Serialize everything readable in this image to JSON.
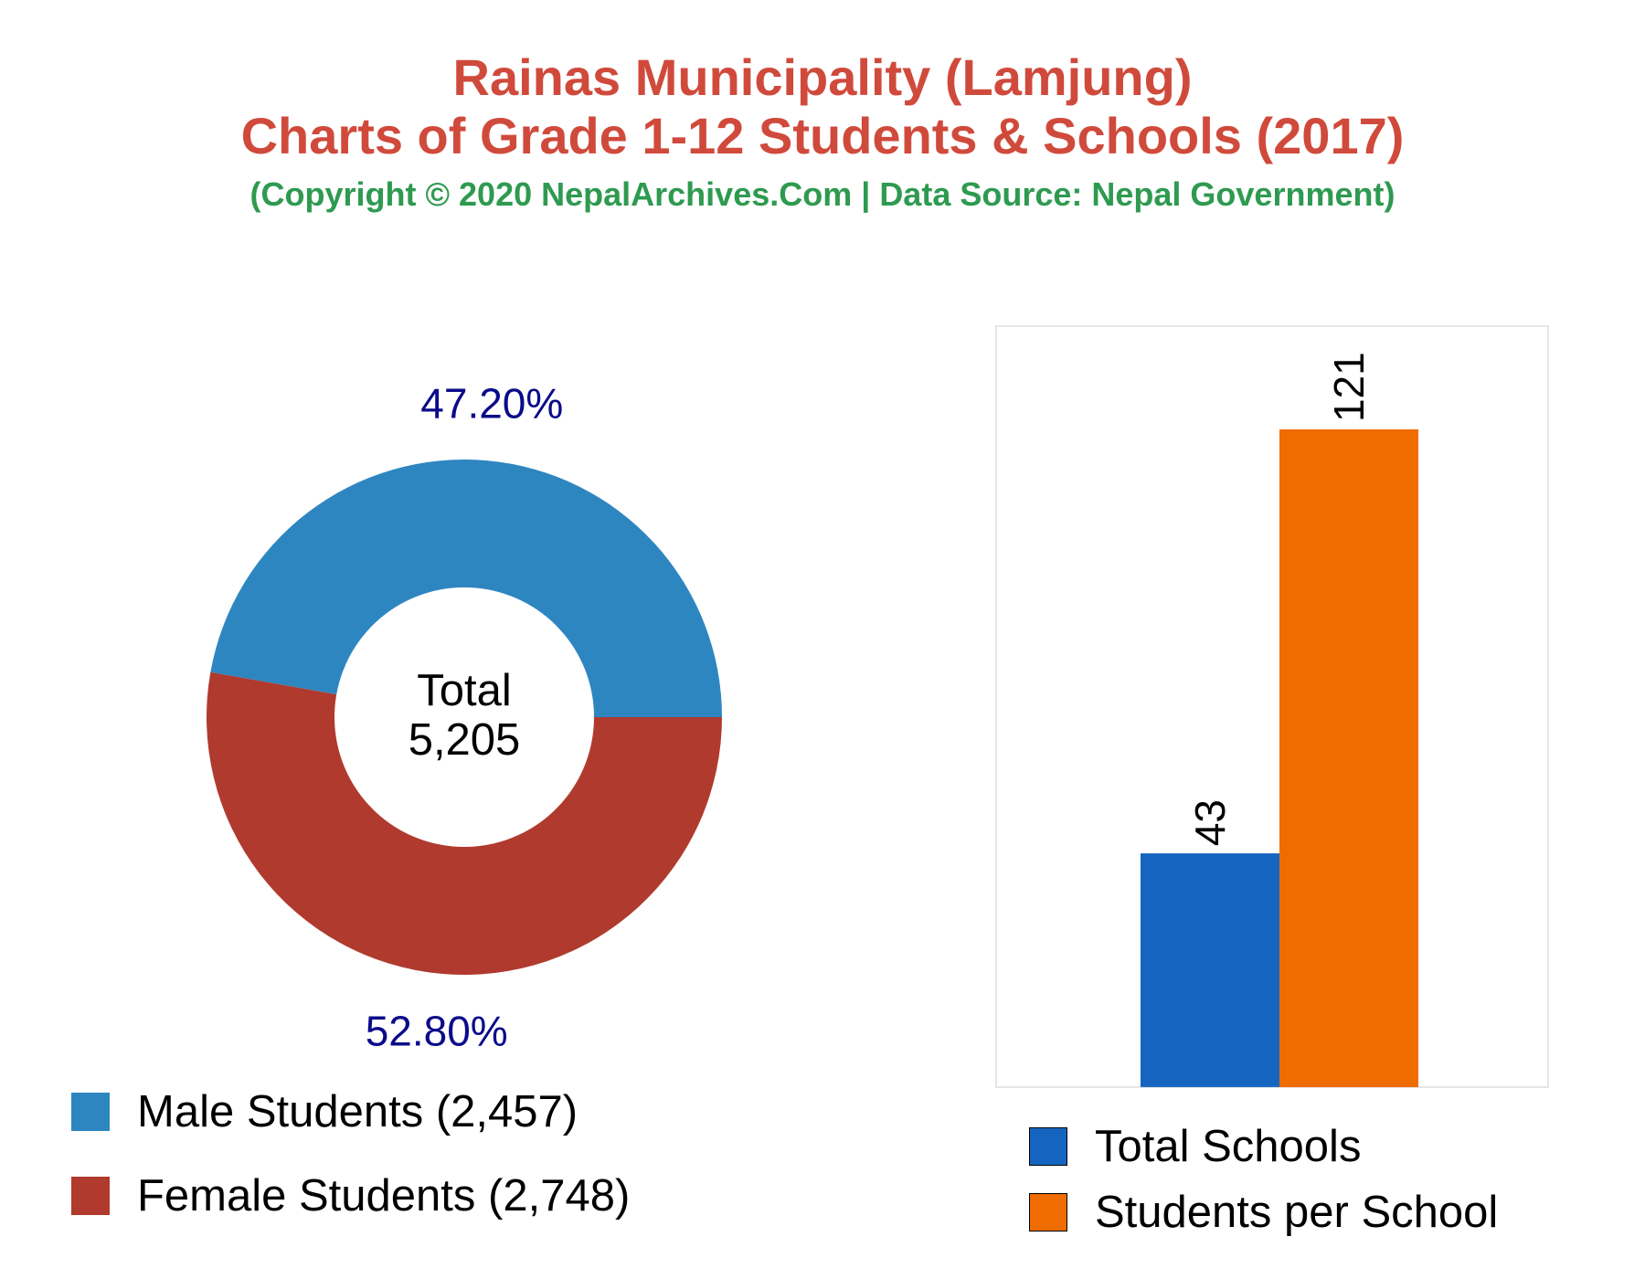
{
  "header": {
    "title_line1": "Rainas Municipality (Lamjung)",
    "title_line2": "Charts of Grade 1-12 Students & Schools (2017)",
    "subtitle": "(Copyright © 2020 NepalArchives.Com | Data Source: Nepal Government)"
  },
  "chart_data": [
    {
      "type": "pie",
      "style": "donut",
      "center_label": "Total",
      "center_value": "5,205",
      "slices": [
        {
          "name": "Male Students",
          "value": 2457,
          "percent_label": "47.20%",
          "legend_label": "Male Students (2,457)",
          "color": "#2e86c1"
        },
        {
          "name": "Female Students",
          "value": 2748,
          "percent_label": "52.80%",
          "legend_label": "Female Students (2,748)",
          "color": "#b03a2e"
        }
      ],
      "percent_label_color": "#0b0b8a"
    },
    {
      "type": "bar",
      "categories": [
        "Total Schools",
        "Students per School"
      ],
      "values": [
        43,
        121
      ],
      "value_labels": [
        "43",
        "121"
      ],
      "colors": [
        "#1565c0",
        "#ef6c00"
      ],
      "ylim": [
        0,
        140
      ],
      "grid": false
    }
  ]
}
